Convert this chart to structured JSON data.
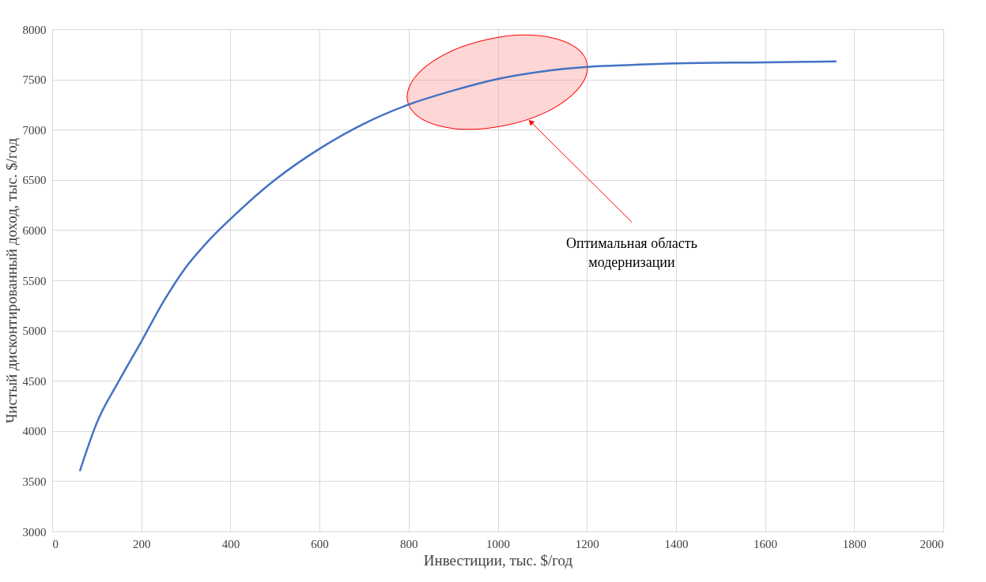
{
  "chart_data": {
    "type": "line",
    "xlabel": "Инвестиции, тыс. $/год",
    "ylabel": "Чистый дисконтированный доход, тыс. $/год",
    "x": [
      62,
      100,
      150,
      200,
      250,
      300,
      350,
      400,
      500,
      600,
      700,
      800,
      900,
      1000,
      1100,
      1200,
      1300,
      1400,
      1600,
      1760
    ],
    "series": [
      {
        "color": "#4472c4",
        "values": [
          3600,
          4080,
          4500,
          4890,
          5290,
          5630,
          5890,
          6110,
          6500,
          6810,
          7060,
          7250,
          7390,
          7505,
          7580,
          7625,
          7645,
          7660,
          7670,
          7680
        ]
      }
    ],
    "xlim": [
      0,
      2000
    ],
    "xticks": [
      0,
      200,
      400,
      600,
      800,
      1000,
      1200,
      1400,
      1600,
      1800,
      2000
    ],
    "ylim": [
      3000,
      8000
    ],
    "yticks": [
      3000,
      3500,
      4000,
      4500,
      5000,
      5500,
      6000,
      6500,
      7000,
      7500,
      8000
    ],
    "grid": true,
    "marker": "none",
    "line_style": "solid",
    "legend": false,
    "annotations": [
      "Оптимальная область модернизации"
    ]
  }
}
